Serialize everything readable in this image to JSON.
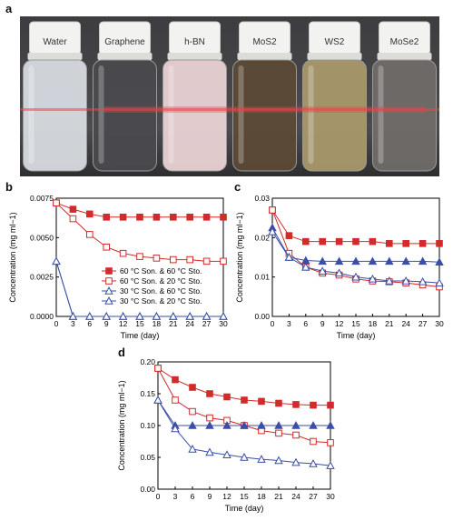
{
  "panels": {
    "a": "a",
    "b": "b",
    "c": "c",
    "d": "d"
  },
  "vials": [
    "Water",
    "Graphene",
    "h-BN",
    "MoS2",
    "WS2",
    "MoSe2"
  ],
  "vial_colors": [
    "#d7dbe0",
    "#4a4a4e",
    "#e9d2d4",
    "#5c4a36",
    "#a8986a",
    "#6f6b68"
  ],
  "laser_color": "#ff3a4a",
  "chart_data": [
    {
      "type": "line",
      "panel": "b",
      "xlabel": "Time (day)",
      "ylabel": "Concentration (mg ml−1)",
      "xlim": [
        0,
        30
      ],
      "ylim": [
        0,
        0.0075
      ],
      "xticks": [
        0,
        3,
        6,
        9,
        12,
        15,
        18,
        21,
        24,
        27,
        30
      ],
      "yticks": [
        0,
        0.0025,
        0.005,
        0.0075
      ],
      "ytick_labels": [
        "0.0000",
        "0.0025",
        "0.0050",
        "0.0075"
      ],
      "legend": "inside-right",
      "series": [
        {
          "name": "60 °C Son. & 60 °C Sto.",
          "color": "#d12b2b",
          "marker": "square-filled",
          "x": [
            0,
            3,
            6,
            9,
            12,
            15,
            18,
            21,
            24,
            27,
            30
          ],
          "y": [
            0.0072,
            0.0068,
            0.0065,
            0.0063,
            0.0063,
            0.0063,
            0.0063,
            0.0063,
            0.0063,
            0.0063,
            0.0063
          ]
        },
        {
          "name": "60 °C Son. & 20 °C Sto.",
          "color": "#d12b2b",
          "marker": "square-open",
          "x": [
            0,
            3,
            6,
            9,
            12,
            15,
            18,
            21,
            24,
            27,
            30
          ],
          "y": [
            0.0072,
            0.0062,
            0.0052,
            0.0044,
            0.004,
            0.0038,
            0.0037,
            0.0036,
            0.0036,
            0.0035,
            0.0035
          ]
        },
        {
          "name": "30 °C Son. & 60 °C Sto.",
          "color": "#3a4fa8",
          "marker": "triangle-open",
          "x": [
            0,
            3,
            6,
            9,
            12,
            15,
            18,
            21,
            24,
            27,
            30
          ],
          "y": [
            0.0035,
            0,
            0,
            0,
            0,
            0,
            0,
            0,
            0,
            0,
            0
          ]
        },
        {
          "name": "30 °C Son. & 20 °C Sto.",
          "color": "#3a4fa8",
          "marker": "triangle-open",
          "x": [
            0,
            3,
            6,
            9,
            12,
            15,
            18,
            21,
            24,
            27,
            30
          ],
          "y": [
            0.0035,
            0,
            0,
            0,
            0,
            0,
            0,
            0,
            0,
            0,
            0
          ]
        }
      ]
    },
    {
      "type": "line",
      "panel": "c",
      "xlabel": "Time (day)",
      "ylabel": "Concentration (mg ml−1)",
      "xlim": [
        0,
        30
      ],
      "ylim": [
        0,
        0.03
      ],
      "xticks": [
        0,
        3,
        6,
        9,
        12,
        15,
        18,
        21,
        24,
        27,
        30
      ],
      "yticks": [
        0,
        0.01,
        0.02,
        0.03
      ],
      "ytick_labels": [
        "0.00",
        "0.01",
        "0.02",
        "0.03"
      ],
      "series": [
        {
          "name": "60 °C Son. & 60 °C Sto.",
          "color": "#d12b2b",
          "marker": "square-filled",
          "x": [
            0,
            3,
            6,
            9,
            12,
            15,
            18,
            21,
            24,
            27,
            30
          ],
          "y": [
            0.027,
            0.0205,
            0.019,
            0.019,
            0.019,
            0.019,
            0.019,
            0.0185,
            0.0185,
            0.0185,
            0.0185
          ]
        },
        {
          "name": "60 °C Son. & 20 °C Sto.",
          "color": "#d12b2b",
          "marker": "square-open",
          "x": [
            0,
            3,
            6,
            9,
            12,
            15,
            18,
            21,
            24,
            27,
            30
          ],
          "y": [
            0.027,
            0.016,
            0.0125,
            0.011,
            0.0105,
            0.0095,
            0.009,
            0.0088,
            0.0085,
            0.008,
            0.0075
          ]
        },
        {
          "name": "30 °C Son. & 60 °C Sto.",
          "color": "#3a4fa8",
          "marker": "triangle-filled",
          "x": [
            0,
            3,
            6,
            9,
            12,
            15,
            18,
            21,
            24,
            27,
            30
          ],
          "y": [
            0.0225,
            0.015,
            0.0142,
            0.014,
            0.014,
            0.014,
            0.014,
            0.014,
            0.014,
            0.014,
            0.0138
          ]
        },
        {
          "name": "30 °C Son. & 20 °C Sto.",
          "color": "#3a4fa8",
          "marker": "triangle-open",
          "x": [
            0,
            3,
            6,
            9,
            12,
            15,
            18,
            21,
            24,
            27,
            30
          ],
          "y": [
            0.0215,
            0.015,
            0.0125,
            0.0115,
            0.011,
            0.01,
            0.0095,
            0.009,
            0.009,
            0.0088,
            0.0085
          ]
        }
      ]
    },
    {
      "type": "line",
      "panel": "d",
      "xlabel": "Time (day)",
      "ylabel": "Concentration (mg ml−1)",
      "xlim": [
        0,
        30
      ],
      "ylim": [
        0,
        0.2
      ],
      "xticks": [
        0,
        3,
        6,
        9,
        12,
        15,
        18,
        21,
        24,
        27,
        30
      ],
      "yticks": [
        0,
        0.05,
        0.1,
        0.15,
        0.2
      ],
      "ytick_labels": [
        "0.00",
        "0.05",
        "0.10",
        "0.15",
        "0.20"
      ],
      "series": [
        {
          "name": "60 °C Son. & 60 °C Sto.",
          "color": "#d12b2b",
          "marker": "square-filled",
          "x": [
            0,
            3,
            6,
            9,
            12,
            15,
            18,
            21,
            24,
            27,
            30
          ],
          "y": [
            0.19,
            0.172,
            0.16,
            0.15,
            0.145,
            0.14,
            0.138,
            0.135,
            0.133,
            0.132,
            0.132
          ]
        },
        {
          "name": "60 °C Son. & 20 °C Sto.",
          "color": "#d12b2b",
          "marker": "square-open",
          "x": [
            0,
            3,
            6,
            9,
            12,
            15,
            18,
            21,
            24,
            27,
            30
          ],
          "y": [
            0.19,
            0.14,
            0.122,
            0.112,
            0.108,
            0.1,
            0.092,
            0.088,
            0.085,
            0.075,
            0.073
          ]
        },
        {
          "name": "30 °C Son. & 60 °C Sto.",
          "color": "#3a4fa8",
          "marker": "triangle-filled",
          "x": [
            0,
            3,
            6,
            9,
            12,
            15,
            18,
            21,
            24,
            27,
            30
          ],
          "y": [
            0.14,
            0.1,
            0.1,
            0.1,
            0.1,
            0.1,
            0.1,
            0.1,
            0.1,
            0.1,
            0.1
          ]
        },
        {
          "name": "30 °C Son. & 20 °C Sto.",
          "color": "#3a4fa8",
          "marker": "triangle-open",
          "x": [
            0,
            3,
            6,
            9,
            12,
            15,
            18,
            21,
            24,
            27,
            30
          ],
          "y": [
            0.14,
            0.095,
            0.063,
            0.058,
            0.054,
            0.05,
            0.047,
            0.045,
            0.042,
            0.04,
            0.037
          ]
        }
      ]
    }
  ]
}
